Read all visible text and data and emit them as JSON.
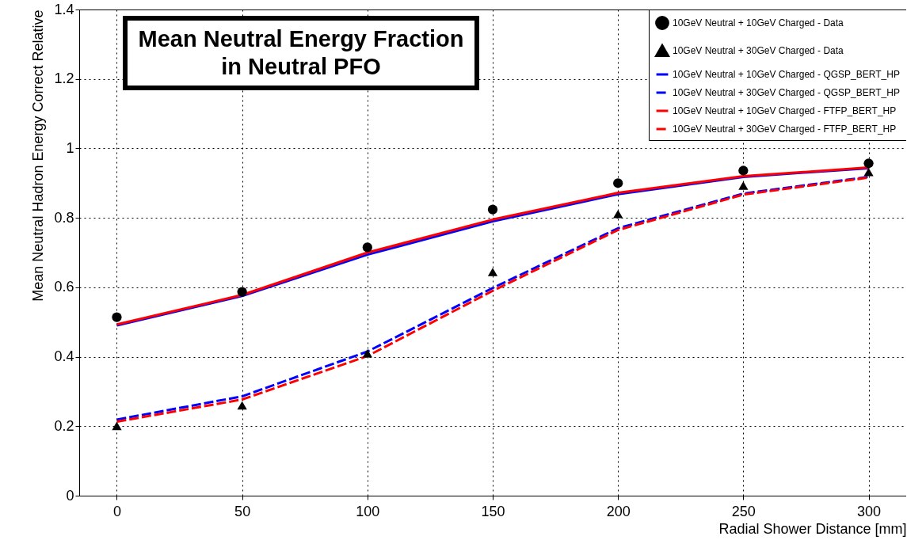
{
  "chart_data": {
    "type": "line",
    "title": "Mean Neutral Energy Fraction in Neutral PFO",
    "xlabel": "Radial Shower Distance [mm]",
    "ylabel": "Mean Neutral Hadron Energy Correct Relative",
    "x": [
      0,
      50,
      100,
      150,
      200,
      250,
      300
    ],
    "xlim": [
      -15,
      315
    ],
    "xticks": [
      0,
      50,
      100,
      150,
      200,
      250,
      300
    ],
    "ylim": [
      0,
      1.4
    ],
    "yticks": [
      {
        "value": 0,
        "label": "0"
      },
      0.2,
      0.4,
      0.6,
      0.8,
      {
        "value": 1,
        "label": "1"
      },
      1.2,
      1.4
    ],
    "grid": true,
    "legend": "top right",
    "series": [
      {
        "name": "10GeV Neutral + 10GeV Charged - Data",
        "type": "scatter",
        "marker": "circle",
        "color": "#000000",
        "values": [
          0.514,
          0.587,
          0.715,
          0.824,
          0.9,
          0.936,
          0.957
        ]
      },
      {
        "name": "10GeV Neutral + 30GeV Charged - Data",
        "type": "scatter",
        "marker": "triangle",
        "color": "#000000",
        "values": [
          0.201,
          0.26,
          0.41,
          0.644,
          0.811,
          0.893,
          0.932
        ]
      },
      {
        "name": "10GeV Neutral + 10GeV Charged - QGSP_BERT_HP",
        "line_style": "solid",
        "color": "#0000ff",
        "values": [
          0.49,
          0.575,
          0.694,
          0.79,
          0.868,
          0.918,
          0.943
        ]
      },
      {
        "name": "10GeV Neutral + 30GeV Charged - QGSP_BERT_HP",
        "line_style": "dashed",
        "color": "#0000ff",
        "values": [
          0.219,
          0.286,
          0.415,
          0.598,
          0.77,
          0.87,
          0.918
        ]
      },
      {
        "name": "10GeV Neutral + 10GeV Charged - FTFP_BERT_HP",
        "line_style": "solid",
        "color": "#ff0000",
        "values": [
          0.493,
          0.578,
          0.7,
          0.795,
          0.872,
          0.92,
          0.945
        ]
      },
      {
        "name": "10GeV Neutral + 30GeV Charged - FTFP_BERT_HP",
        "line_style": "dashed",
        "color": "#ff0000",
        "values": [
          0.213,
          0.277,
          0.402,
          0.59,
          0.765,
          0.867,
          0.916
        ]
      }
    ]
  }
}
